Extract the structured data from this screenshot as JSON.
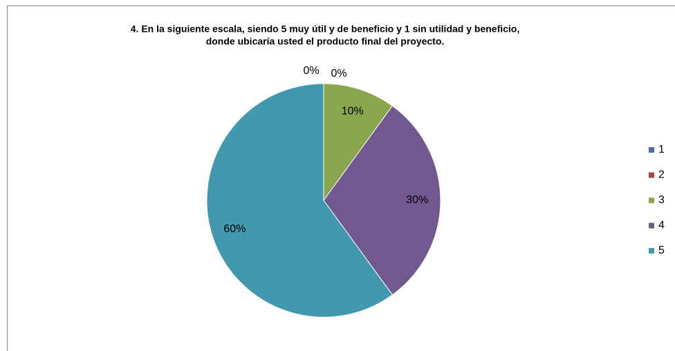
{
  "chart_data": {
    "type": "pie",
    "title": [
      "4. En la siguiente escala, siendo 5 muy útil y de beneficio y 1 sin utilidad y beneficio,",
      "donde ubicaría usted el producto final del proyecto."
    ],
    "categories": [
      "1",
      "2",
      "3",
      "4",
      "5"
    ],
    "values": [
      0,
      0,
      10,
      30,
      60
    ],
    "value_labels": [
      "0%",
      "0%",
      "10%",
      "30%",
      "60%"
    ],
    "colors": [
      "#4572a7",
      "#aa4643",
      "#89a54e",
      "#71588f",
      "#4198af"
    ],
    "legend": "right"
  }
}
